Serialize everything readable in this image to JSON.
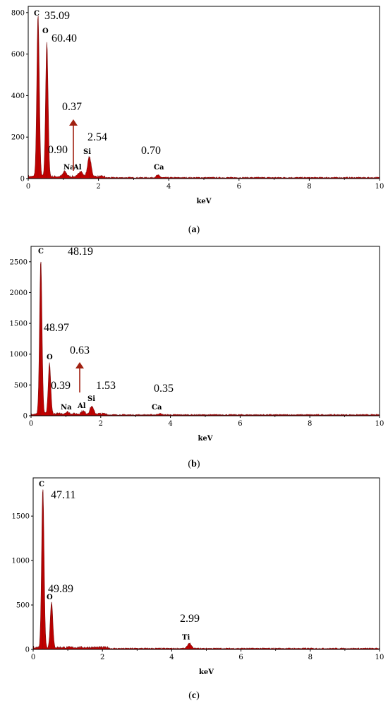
{
  "chart_data": [
    {
      "type": "line",
      "panel_label": "a",
      "xlabel": "keV",
      "xlim": [
        0,
        10
      ],
      "ylim": [
        0,
        830
      ],
      "x_ticks": [
        0,
        2,
        4,
        6,
        8,
        10
      ],
      "y_ticks": [
        0,
        200,
        400,
        600,
        800
      ],
      "peaks": [
        {
          "element": "C",
          "kev": 0.28,
          "counts": 780
        },
        {
          "element": "O",
          "kev": 0.53,
          "counts": 650
        },
        {
          "element": "Na",
          "kev": 1.04,
          "counts": 25
        },
        {
          "element": "Al",
          "kev": 1.49,
          "counts": 28
        },
        {
          "element": "Si",
          "kev": 1.74,
          "counts": 95
        },
        {
          "element": "Ca",
          "kev": 3.69,
          "counts": 12
        }
      ],
      "annotations": [
        {
          "text": "35.09",
          "element": "C"
        },
        {
          "text": "60.40",
          "element": "O"
        },
        {
          "text": "0.90",
          "element": "Na"
        },
        {
          "text": "0.37",
          "element": "Al",
          "arrow": true
        },
        {
          "text": "2.54",
          "element": "Si"
        },
        {
          "text": "0.70",
          "element": "Ca"
        }
      ]
    },
    {
      "type": "line",
      "panel_label": "b",
      "xlabel": "keV",
      "xlim": [
        0,
        10
      ],
      "ylim": [
        0,
        2750
      ],
      "x_ticks": [
        0,
        2,
        4,
        6,
        8,
        10
      ],
      "y_ticks": [
        0,
        500,
        1000,
        1500,
        2000,
        2500
      ],
      "peaks": [
        {
          "element": "C",
          "kev": 0.28,
          "counts": 2500
        },
        {
          "element": "O",
          "kev": 0.53,
          "counts": 820
        },
        {
          "element": "Na",
          "kev": 1.04,
          "counts": 30
        },
        {
          "element": "Al",
          "kev": 1.49,
          "counts": 45
        },
        {
          "element": "Si",
          "kev": 1.74,
          "counts": 120
        },
        {
          "element": "Ca",
          "kev": 3.69,
          "counts": 20
        }
      ],
      "annotations": [
        {
          "text": "48.19",
          "element": "C"
        },
        {
          "text": "48.97",
          "element": "O"
        },
        {
          "text": "0.39",
          "element": "Na"
        },
        {
          "text": "0.63",
          "element": "Al",
          "arrow": true
        },
        {
          "text": "1.53",
          "element": "Si"
        },
        {
          "text": "0.35",
          "element": "Ca"
        }
      ]
    },
    {
      "type": "line",
      "panel_label": "c",
      "xlabel": "keV",
      "xlim": [
        0,
        10
      ],
      "ylim": [
        0,
        1930
      ],
      "x_ticks": [
        0,
        2,
        4,
        6,
        8,
        10
      ],
      "y_ticks": [
        0,
        500,
        1000,
        1500
      ],
      "peaks": [
        {
          "element": "C",
          "kev": 0.28,
          "counts": 1800
        },
        {
          "element": "O",
          "kev": 0.53,
          "counts": 520
        },
        {
          "element": "Ti",
          "kev": 4.51,
          "counts": 60
        }
      ],
      "annotations": [
        {
          "text": "47.11",
          "element": "C"
        },
        {
          "text": "49.89",
          "element": "O"
        },
        {
          "text": "2.99",
          "element": "Ti"
        }
      ]
    }
  ],
  "colors": {
    "spectrum": "#c00000",
    "spectrum_edge": "#7a1010",
    "arrow": "#a02010"
  }
}
